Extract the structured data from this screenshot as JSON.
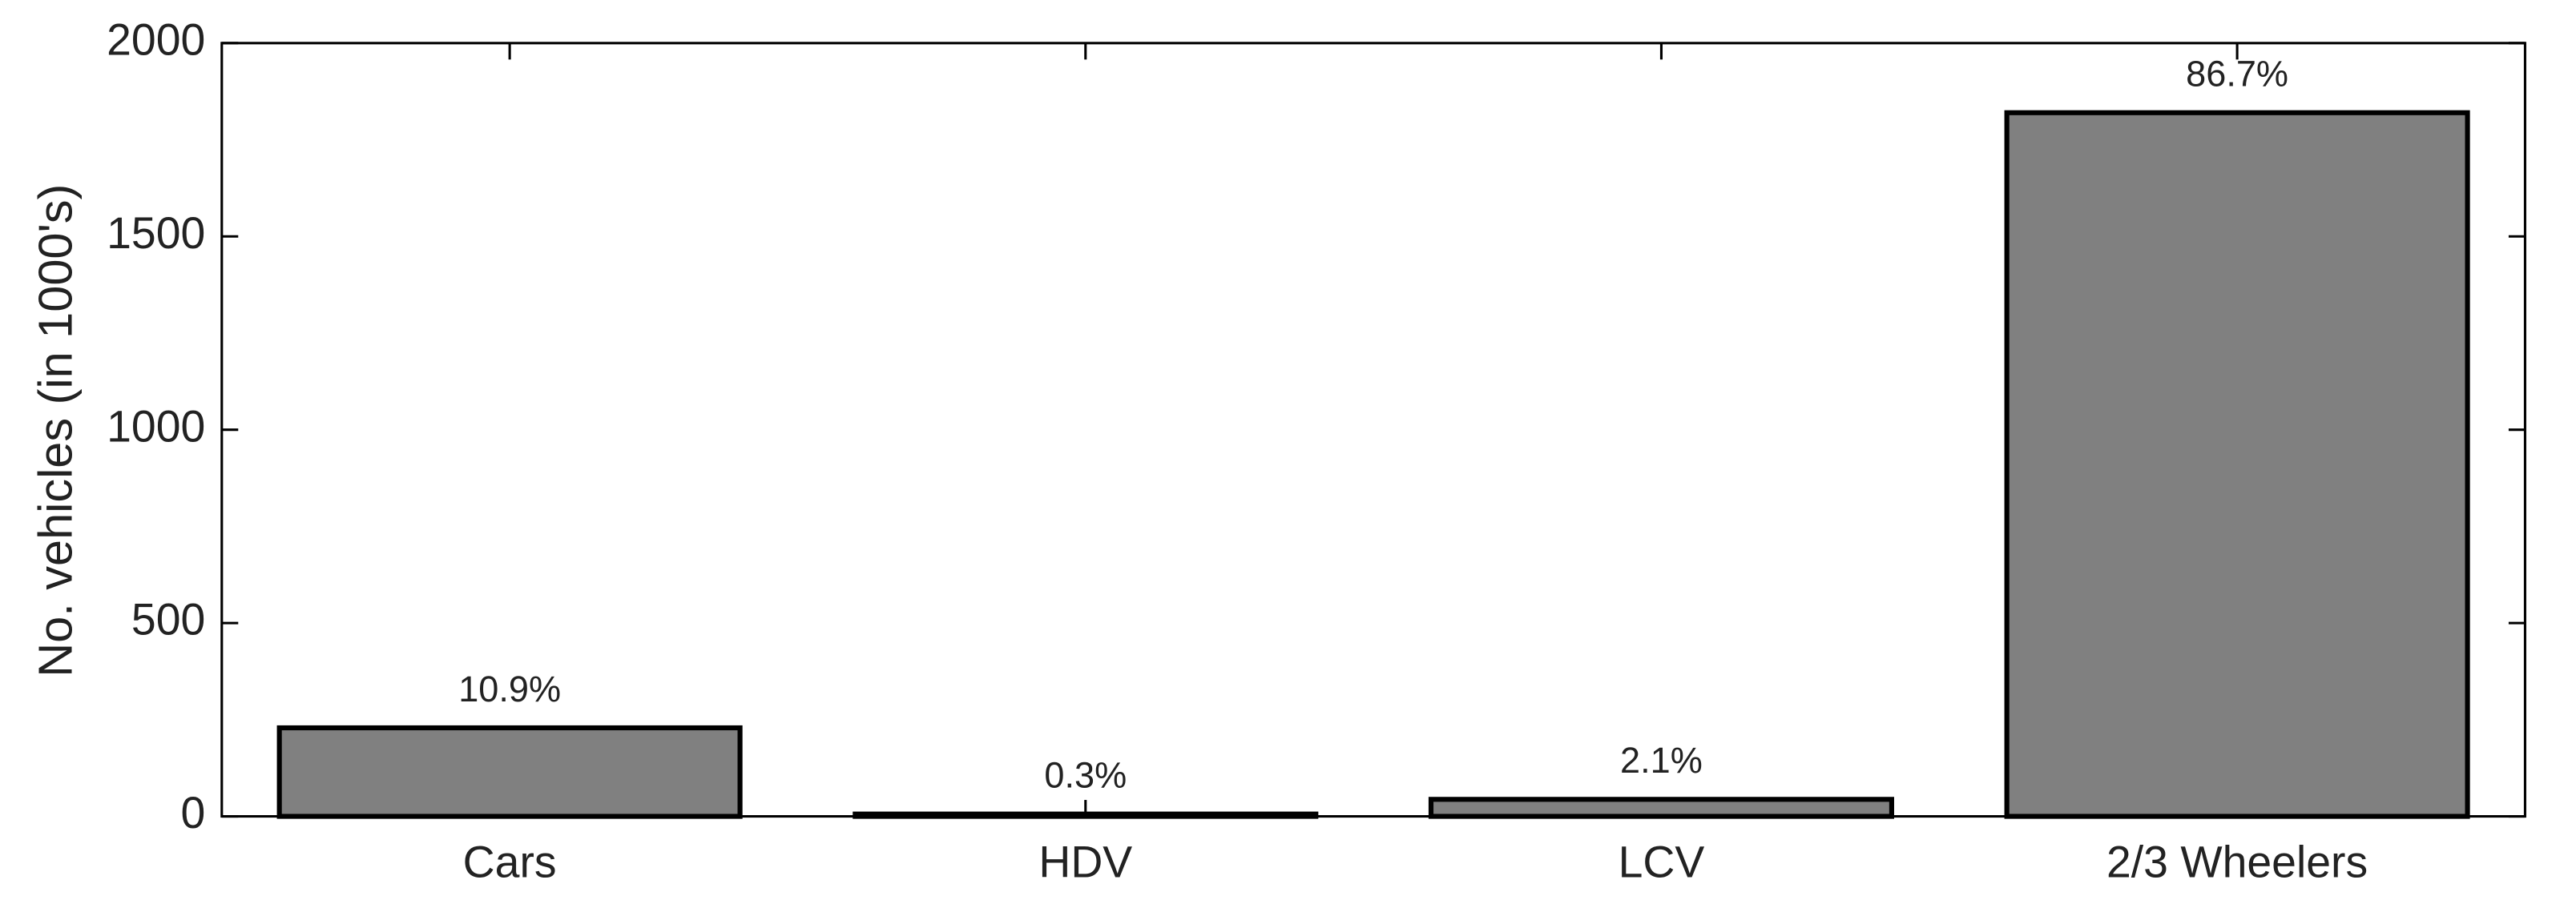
{
  "chart_data": {
    "type": "bar",
    "ylabel": "No. vehicles (in 1000's)",
    "categories": [
      "Cars",
      "HDV",
      "LCV",
      "2/3 Wheelers"
    ],
    "values": [
      229,
      6,
      44,
      1820
    ],
    "annotations": [
      "10.9%",
      "0.3%",
      "2.1%",
      "86.7%"
    ],
    "color": "#808080",
    "ylim": [
      0,
      2000
    ],
    "yticks": [
      0,
      500,
      1000,
      1500,
      2000
    ],
    "grid": false
  }
}
